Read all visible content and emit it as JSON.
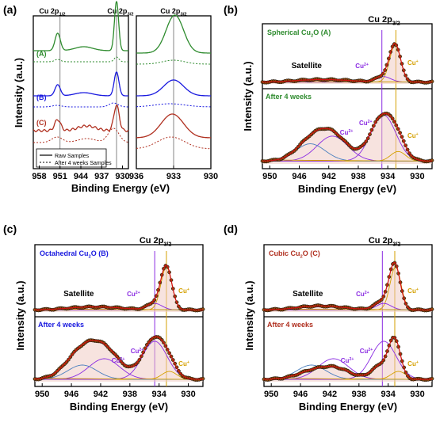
{
  "figure": {
    "panel_a_label": "(a)",
    "panel_b_label": "(b)",
    "panel_c_label": "(c)",
    "panel_d_label": "(d)"
  },
  "colors": {
    "A": "#2e8b2e",
    "B": "#1a1adf",
    "C": "#b03020",
    "cu2": "#8a2be2",
    "cu1": "#d4a000",
    "sat": "#4a7fbf",
    "env": "#d01010",
    "bg_fill": "#f0c8c0"
  },
  "chart_data": [
    {
      "panel": "(a)",
      "type": "line",
      "ylabel": "Intensity (a.u.)",
      "xlabel": "Binding Energy (eV)",
      "left": {
        "xlim": [
          960,
          928
        ],
        "xticks": [
          958,
          951,
          944,
          937,
          930
        ],
        "vlines": [
          951,
          932
        ],
        "peak_labels": [
          "Cu 2p",
          "1/2",
          "Cu 2p",
          "3/2"
        ]
      },
      "right": {
        "xlim": [
          936,
          930
        ],
        "xticks": [
          936,
          933,
          930
        ],
        "vlines": [
          933
        ],
        "peak_label": [
          "Cu 2p",
          "3/2"
        ]
      },
      "series": [
        {
          "name": "(A)",
          "color_key": "A"
        },
        {
          "name": "(B)",
          "color_key": "B"
        },
        {
          "name": "(C)",
          "color_key": "C"
        }
      ],
      "legend": {
        "raw": "Raw Samples",
        "aged": "After 4 weeks Samples",
        "position": "bottom-left"
      }
    },
    {
      "panel": "(b)",
      "type": "line",
      "ylabel": "Intensity (a.u.)",
      "xlabel": "Binding Energy (eV)",
      "xlim": [
        951,
        928
      ],
      "xticks": [
        950,
        946,
        942,
        938,
        934,
        930
      ],
      "top_title": [
        "Spherical Cu",
        "2",
        "O (A)"
      ],
      "bottom_title": "After 4 weeks",
      "title_color_key": "A",
      "peak_label": [
        "Cu 2p",
        "3/2"
      ],
      "satellite_label": "Satellite",
      "cu2_label": [
        "Cu",
        "2+"
      ],
      "cu1_label": [
        "Cu",
        "+"
      ],
      "vlines": [
        934.8,
        932.9
      ]
    },
    {
      "panel": "(c)",
      "type": "line",
      "ylabel": "Intensity (a.u.)",
      "xlabel": "Binding Energy (eV)",
      "xlim": [
        951,
        928
      ],
      "xticks": [
        950,
        946,
        942,
        938,
        934,
        930
      ],
      "top_title": [
        "Octahedral Cu",
        "2",
        "O (B)"
      ],
      "bottom_title": "After 4 weeks",
      "title_color_key": "B",
      "peak_label": [
        "Cu 2p",
        "3/2"
      ],
      "satellite_label": "Satellite",
      "cu2_label": [
        "Cu",
        "2+"
      ],
      "cu1_label": [
        "Cu",
        "+"
      ],
      "vlines": [
        934.6,
        933.0
      ]
    },
    {
      "panel": "(d)",
      "type": "line",
      "ylabel": "Intensity (a.u.)",
      "xlabel": "Binding Energy (eV)",
      "xlim": [
        951,
        928
      ],
      "xticks": [
        950,
        946,
        942,
        938,
        934,
        930
      ],
      "top_title": [
        "Cubic Cu",
        "2",
        "O (C)"
      ],
      "bottom_title": "After 4 weeks",
      "title_color_key": "C",
      "peak_label": [
        "Cu 2p",
        "3/2"
      ],
      "satellite_label": "Satellite",
      "cu2_label": [
        "Cu",
        "2+"
      ],
      "cu1_label": [
        "Cu",
        "+"
      ],
      "vlines": [
        934.8,
        933.1
      ]
    }
  ]
}
